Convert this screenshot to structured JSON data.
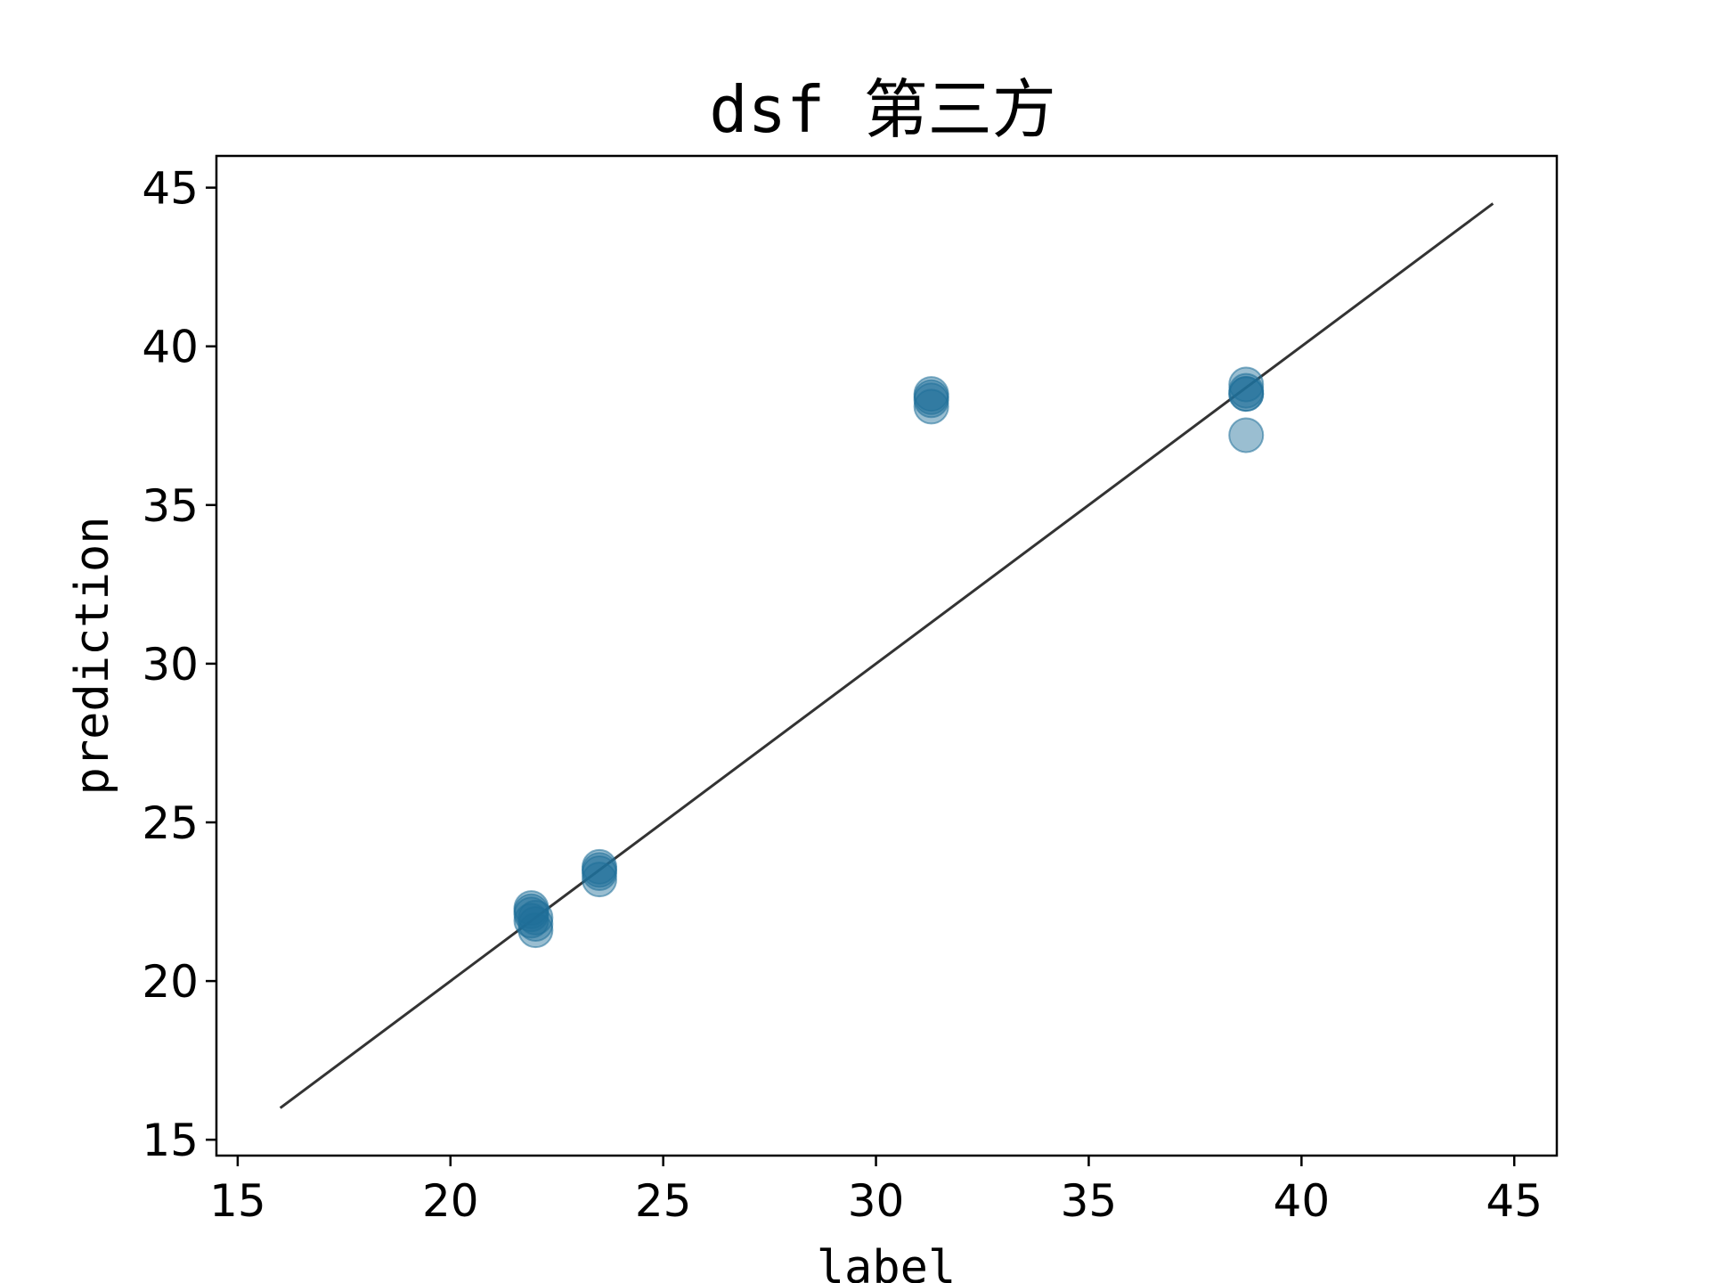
{
  "chart_data": {
    "type": "scatter",
    "title": "dsf 第三方",
    "xlabel": "label",
    "ylabel": "prediction",
    "xlim": [
      14.5,
      46
    ],
    "ylim": [
      14.5,
      46
    ],
    "xticks": [
      "15",
      "20",
      "25",
      "30",
      "35",
      "40",
      "45"
    ],
    "yticks": [
      "15",
      "20",
      "25",
      "30",
      "35",
      "40",
      "45"
    ],
    "grid": false,
    "legend": "none",
    "marker_color": "#1f6f99",
    "marker_opacity": 0.45,
    "line_color": "#333333",
    "reference_line": {
      "x": [
        16,
        44.5
      ],
      "y": [
        16,
        44.5
      ]
    },
    "points": [
      {
        "x": 21.9,
        "y": 22.3
      },
      {
        "x": 21.9,
        "y": 22.1
      },
      {
        "x": 21.9,
        "y": 21.9
      },
      {
        "x": 22.0,
        "y": 22.0
      },
      {
        "x": 22.0,
        "y": 21.8
      },
      {
        "x": 22.0,
        "y": 21.6
      },
      {
        "x": 21.9,
        "y": 22.2
      },
      {
        "x": 23.5,
        "y": 23.6
      },
      {
        "x": 23.5,
        "y": 23.4
      },
      {
        "x": 23.5,
        "y": 23.2
      },
      {
        "x": 23.5,
        "y": 23.5
      },
      {
        "x": 31.3,
        "y": 38.5
      },
      {
        "x": 31.3,
        "y": 38.4
      },
      {
        "x": 31.3,
        "y": 38.3
      },
      {
        "x": 31.3,
        "y": 38.1
      },
      {
        "x": 38.7,
        "y": 38.8
      },
      {
        "x": 38.7,
        "y": 38.6
      },
      {
        "x": 38.7,
        "y": 38.5
      },
      {
        "x": 38.7,
        "y": 38.5
      },
      {
        "x": 38.7,
        "y": 37.2
      }
    ]
  }
}
